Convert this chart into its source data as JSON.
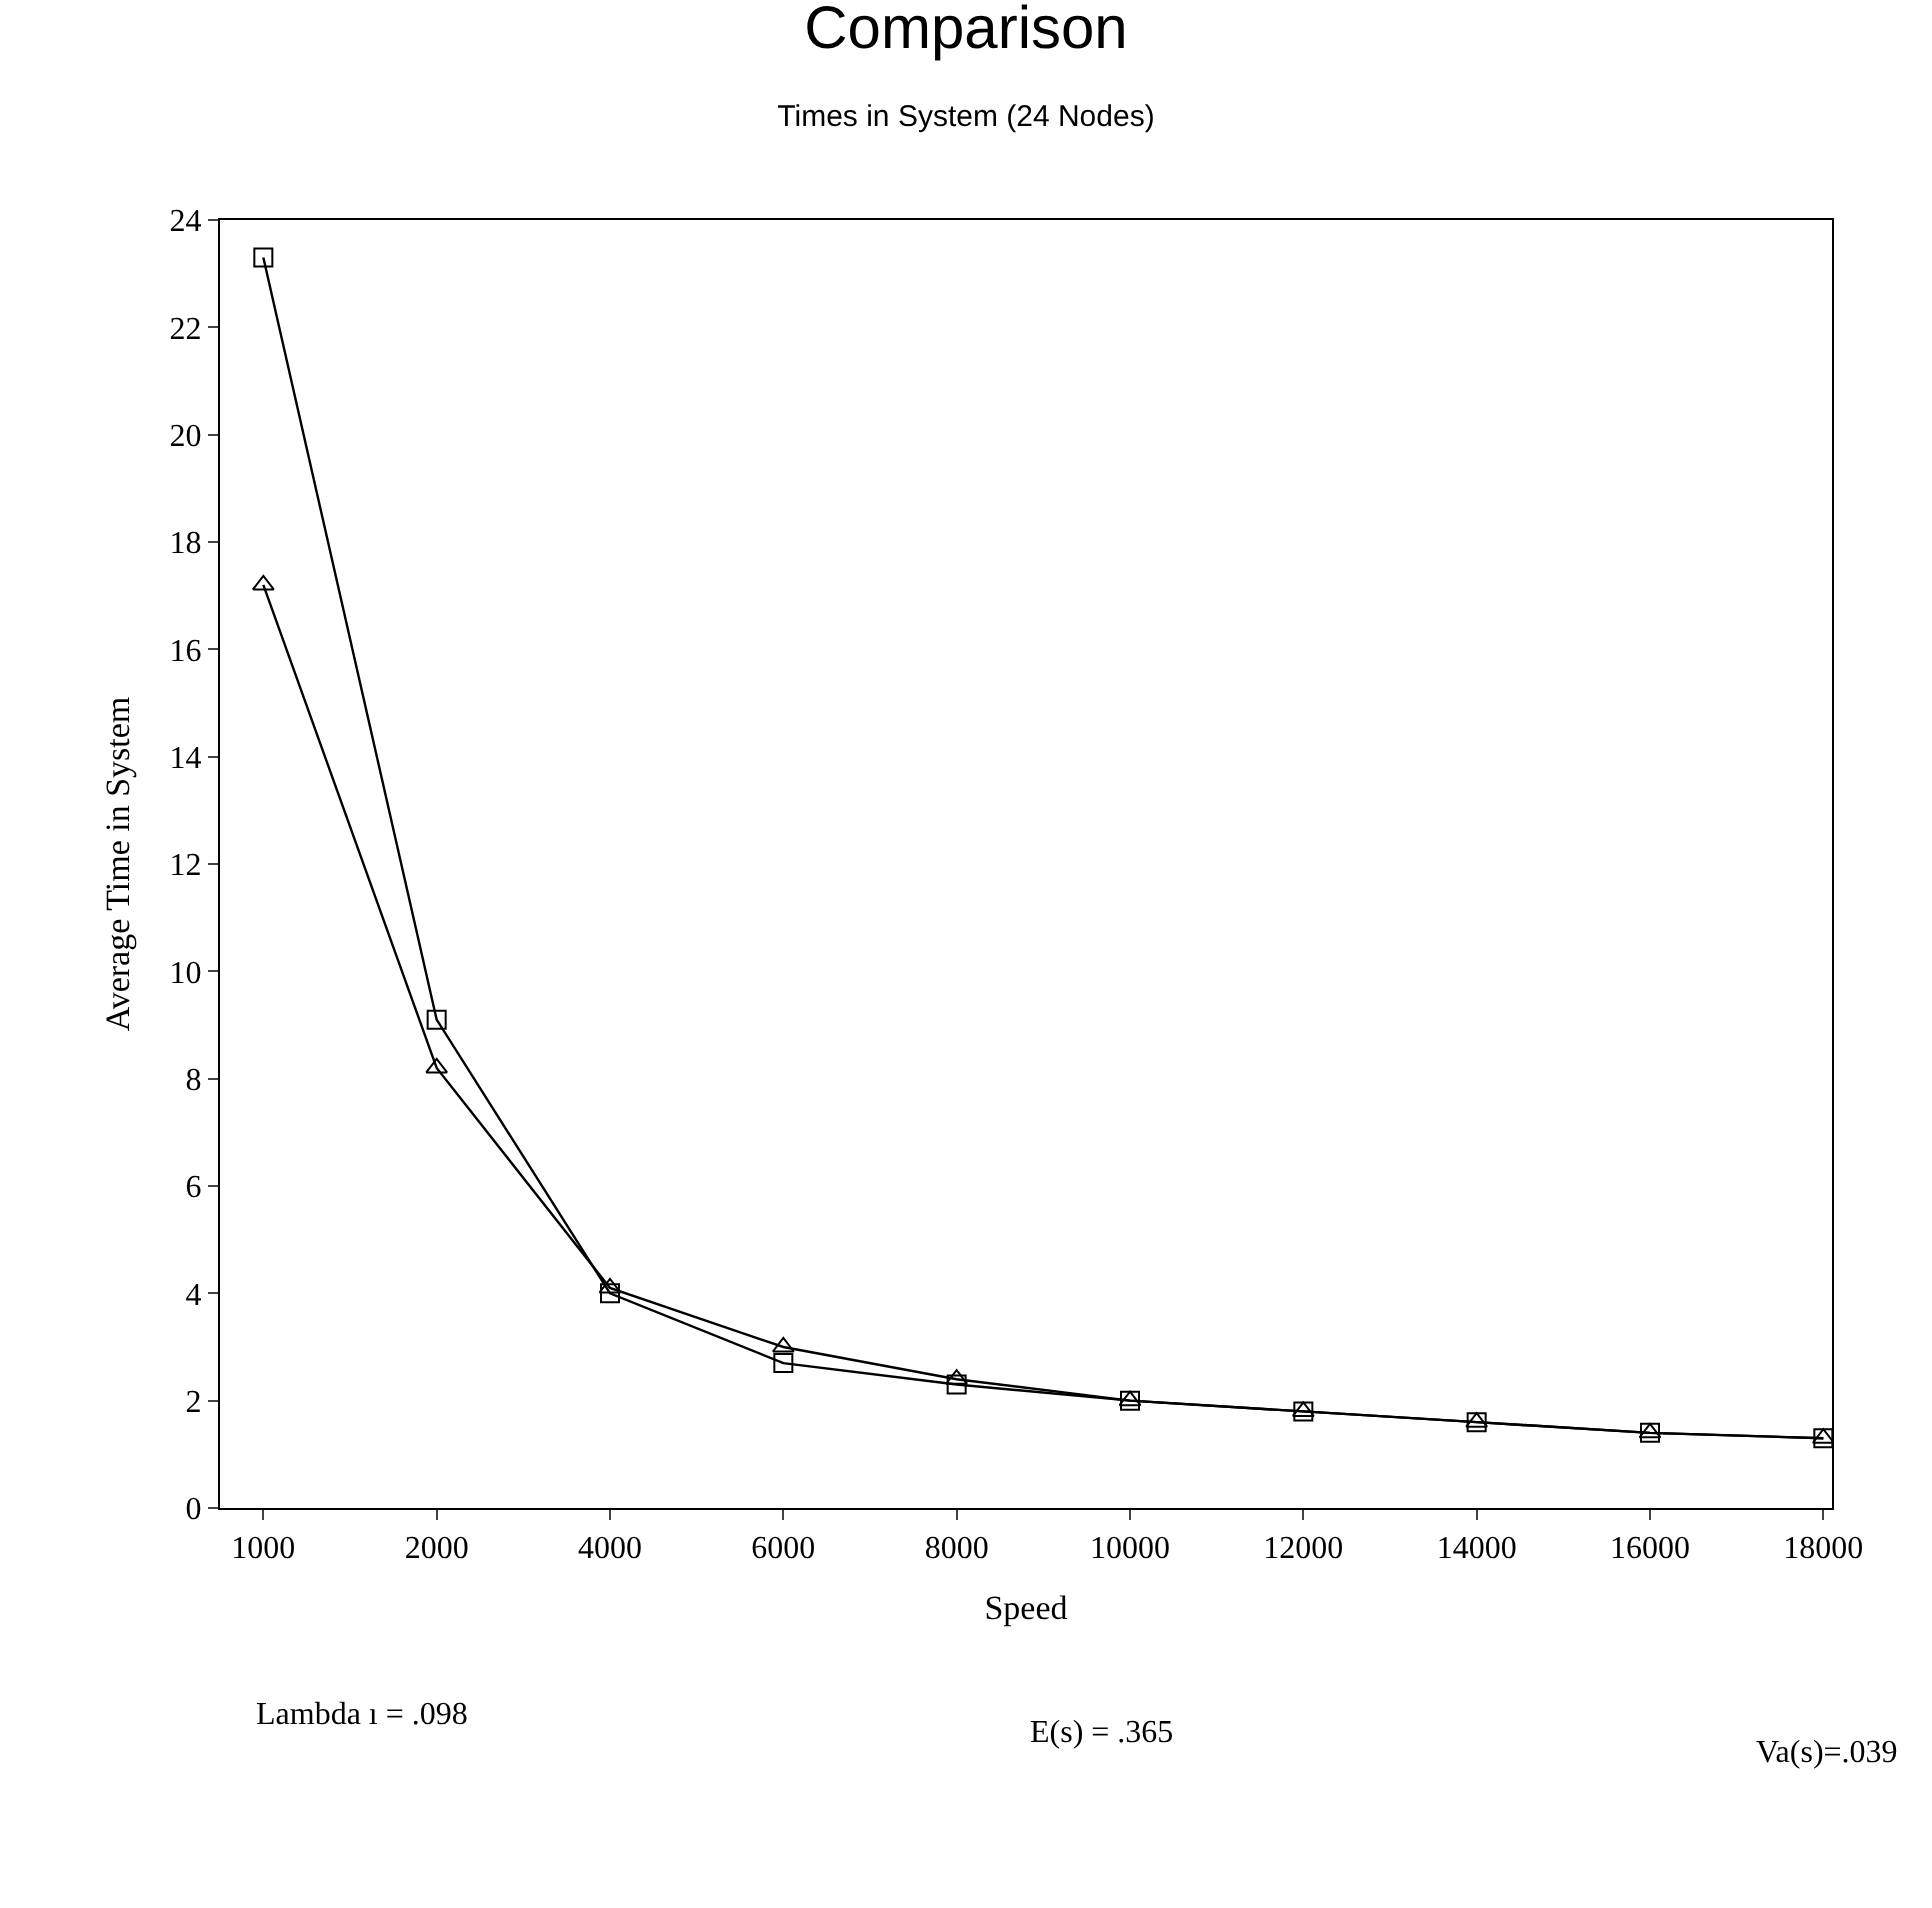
{
  "chart_data": {
    "type": "line",
    "title": "Comparison",
    "subtitle": "Times in System (24 Nodes)",
    "xlabel": "Speed",
    "ylabel": "Average Time in System",
    "categories": [
      "1000",
      "2000",
      "4000",
      "6000",
      "8000",
      "10000",
      "12000",
      "14000",
      "16000",
      "18000"
    ],
    "series": [
      {
        "color": "#000000",
        "marker": "square",
        "values": [
          23.3,
          9.1,
          4.0,
          2.7,
          2.3,
          2.0,
          1.8,
          1.6,
          1.4,
          1.3
        ]
      },
      {
        "color": "#000000",
        "marker": "triangle",
        "values": [
          17.2,
          8.2,
          4.1,
          3.0,
          2.4,
          2.0,
          1.8,
          1.6,
          1.4,
          1.3
        ]
      }
    ],
    "ylim": [
      0,
      24
    ],
    "yticks": [
      0,
      2,
      4,
      6,
      8,
      10,
      12,
      14,
      16,
      18,
      20,
      22,
      24
    ],
    "line_style": "solid",
    "annotations": [
      "Lambda ı = .098",
      "E(s) = .365",
      "Va(s)=.039"
    ]
  }
}
